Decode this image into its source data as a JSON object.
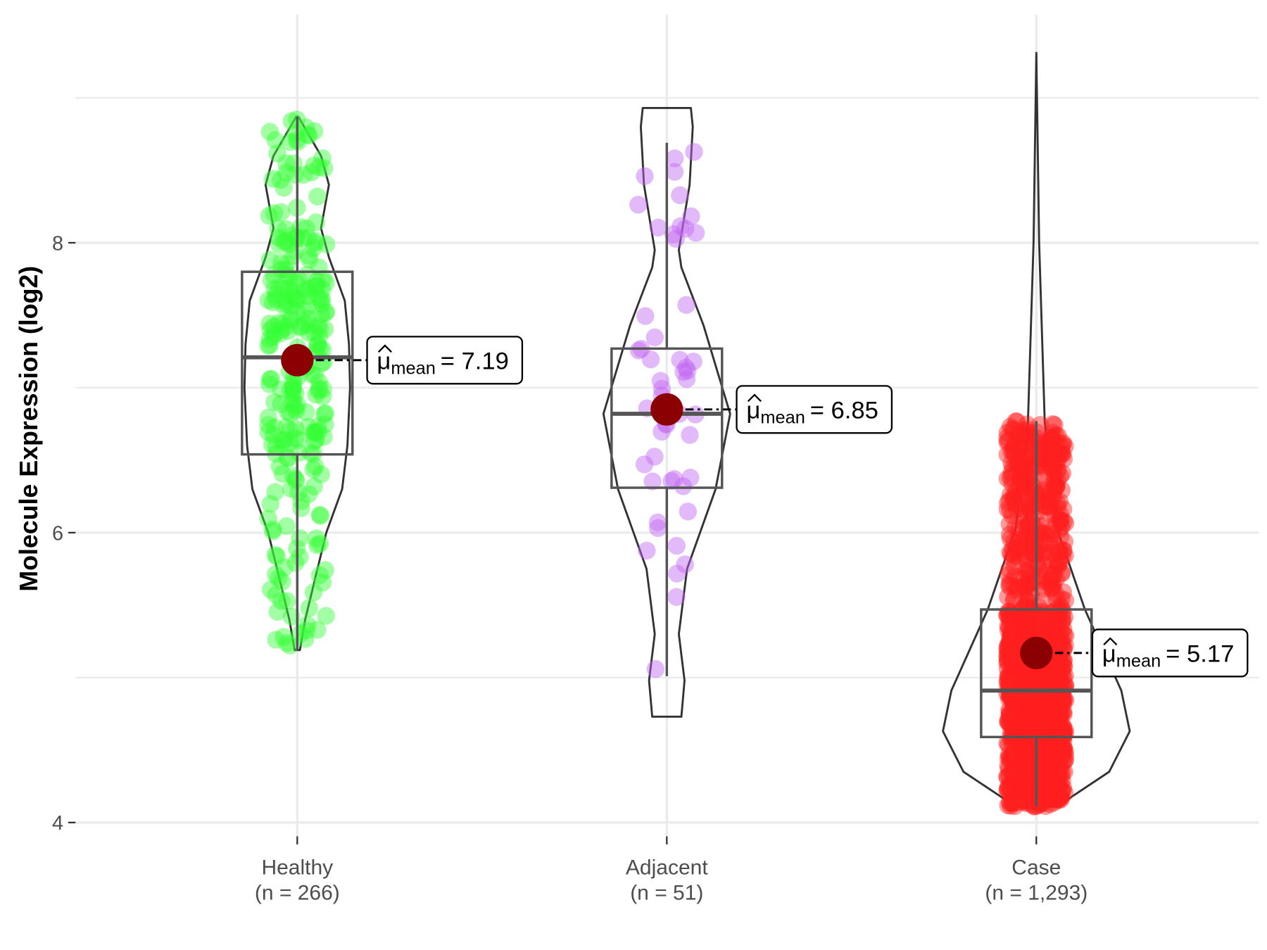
{
  "chart_data": {
    "type": "violin-box-jitter",
    "ylabel": "Molecule Expression (log2)",
    "xlabel": "",
    "ylim": [
      3.9,
      9.65
    ],
    "yticks": [
      4,
      6,
      8
    ],
    "ytick_labels": [
      "4",
      "6",
      "8"
    ],
    "grid": true,
    "mean_label_prefix": "μ",
    "mean_label_sub": "mean",
    "groups": [
      {
        "name": "Healthy",
        "n_label": "(n = 266)",
        "n": 266,
        "color": "#33ff33",
        "min": 5.19,
        "q1": 6.54,
        "median": 7.21,
        "q3": 7.8,
        "max": 8.87,
        "mean": 7.19,
        "mean_text": "= 7.19",
        "violin_range": [
          5.19,
          8.87
        ],
        "density": [
          [
            5.19,
            0.05
          ],
          [
            5.4,
            0.15
          ],
          [
            5.7,
            0.35
          ],
          [
            6.0,
            0.55
          ],
          [
            6.3,
            0.85
          ],
          [
            6.6,
            0.95
          ],
          [
            7.0,
            1.0
          ],
          [
            7.3,
            0.98
          ],
          [
            7.6,
            0.9
          ],
          [
            7.9,
            0.6
          ],
          [
            8.1,
            0.45
          ],
          [
            8.4,
            0.6
          ],
          [
            8.6,
            0.45
          ],
          [
            8.87,
            0.02
          ]
        ]
      },
      {
        "name": "Adjacent",
        "n_label": "(n = 51)",
        "n": 51,
        "color": "#c266f2",
        "min": 5.01,
        "q1": 6.31,
        "median": 6.82,
        "q3": 7.27,
        "max": 8.69,
        "mean": 6.85,
        "mean_text": "= 6.85",
        "violin_range": [
          4.73,
          8.93
        ],
        "density": [
          [
            4.73,
            0.23
          ],
          [
            4.98,
            0.28
          ],
          [
            5.3,
            0.19
          ],
          [
            5.75,
            0.32
          ],
          [
            6.3,
            0.77
          ],
          [
            6.82,
            1.0
          ],
          [
            7.43,
            0.58
          ],
          [
            7.83,
            0.23
          ],
          [
            7.95,
            0.19
          ],
          [
            8.4,
            0.36
          ],
          [
            8.8,
            0.41
          ],
          [
            8.93,
            0.38
          ]
        ]
      },
      {
        "name": "Case",
        "n_label": "(n = 1,293)",
        "n": 1293,
        "color": "#ff2020",
        "min": 4.11,
        "q1": 4.59,
        "median": 4.91,
        "q3": 5.47,
        "max": 6.77,
        "mean": 5.17,
        "mean_text": "= 5.17",
        "violin_range": [
          4.11,
          9.31
        ],
        "density": [
          [
            4.11,
            0.22
          ],
          [
            4.35,
            0.78
          ],
          [
            4.63,
            1.0
          ],
          [
            4.91,
            0.91
          ],
          [
            5.47,
            0.52
          ],
          [
            6.03,
            0.22
          ],
          [
            6.76,
            0.09
          ],
          [
            8.0,
            0.03
          ],
          [
            9.31,
            0.0
          ]
        ]
      }
    ],
    "mean_color": "#8b0000"
  }
}
